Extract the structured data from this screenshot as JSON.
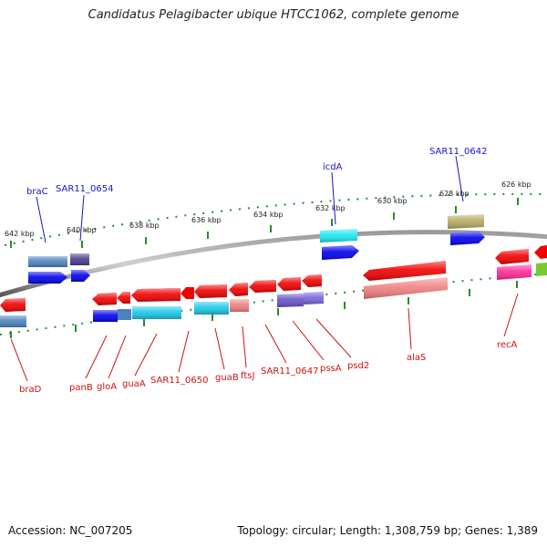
{
  "title": "Candidatus Pelagibacter ubique HTCC1062, complete genome",
  "footer": {
    "accession": "Accession: NC_007205",
    "topology": "Topology: circular; Length: 1,308,759 bp; Genes: 1,389"
  },
  "colors": {
    "backbone": "#7a7a7a",
    "tick_top": "#2a8a2a",
    "label_top": "#1414c8",
    "label_bottom": "#d01010",
    "gene_red": "#f00000",
    "gene_blue": "#0000ee",
    "gene_cyan": "#18c8e8",
    "gene_steel": "#4a82be",
    "gene_pink": "#ff2896",
    "gene_olive": "#b4aa60",
    "gene_salmon": "#f08080",
    "gene_purple": "#6450c8"
  },
  "scale_labels": [
    "642 kbp",
    "640 kbp",
    "638 kbp",
    "636 kbp",
    "634 kbp",
    "632 kbp",
    "630 kbp",
    "628 kbp",
    "626 kbp"
  ],
  "top_labels": [
    "braC",
    "SAR11_0654",
    "icdA",
    "SAR11_0642"
  ],
  "bottom_labels": [
    "braD",
    "panB",
    "gloA",
    "guaA",
    "SAR11_0650",
    "guaB",
    "ftsJ",
    "SAR11_0647",
    "pssA",
    "psd2",
    "alaS",
    "recA"
  ]
}
